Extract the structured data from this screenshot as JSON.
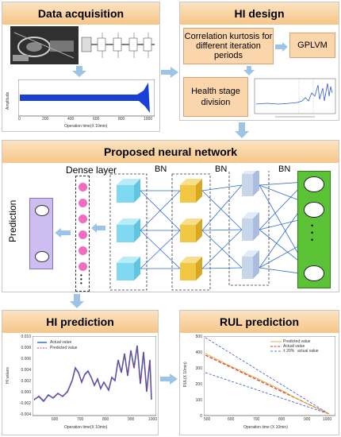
{
  "panels": {
    "data_acquisition": {
      "title": "Data acquisition",
      "vib_chart": {
        "ylabel": "Amplitude",
        "xlabel": "Operation time(X 10min)",
        "xticks": [
          "0",
          "200",
          "400",
          "600",
          "800",
          "1000"
        ]
      }
    },
    "hi_design": {
      "title": "HI design",
      "kurtosis_label": "Correlation kurtosis for different iteration periods",
      "gplvm_label": "GPLVM",
      "stage_label": "Health stage division"
    },
    "network": {
      "title": "Proposed neural network",
      "dense_label": "Dense layer",
      "bn_labels": [
        "BN",
        "BN",
        "BN"
      ],
      "prediction_label": "Prediction",
      "output_dots": "•\n•\n•"
    },
    "hi_prediction": {
      "title": "HI prediction",
      "ylabel": "HI values",
      "xlabel": "Operation time(X 10min)",
      "legend": [
        "Actual value",
        "Predicted value"
      ],
      "xticks": [
        "600",
        "700",
        "800",
        "900",
        "1000"
      ],
      "yticks": [
        "0.010",
        "0.008",
        "0.006",
        "0.004",
        "0.002",
        "0.000",
        "-0.002",
        "-0.004"
      ]
    },
    "rul_prediction": {
      "title": "RUL prediction",
      "ylabel": "RUL(X 10min)",
      "xlabel": "Operation time  (X 10min)",
      "legend": [
        "Predicted value",
        "Actual value",
        "± 20%",
        "actual value"
      ],
      "xticks": [
        "500",
        "600",
        "700",
        "800",
        "900",
        "1000"
      ],
      "yticks": [
        "500",
        "400",
        "300",
        "200",
        "100",
        "0"
      ]
    }
  },
  "colors": {
    "header": "#f6c587",
    "orange_box": "#fbd6ad",
    "arrow": "#9dc3e6",
    "cyan_block": "#7fd9f0",
    "yellow_block": "#f2c744",
    "lavender_block": "#c8d6ec",
    "output_layer": "#5bc236",
    "prediction_box": "#cdbdf0",
    "dense_dot": "#f06cc0",
    "series_blue": "#2f5fd0",
    "series_red": "#e03030"
  }
}
